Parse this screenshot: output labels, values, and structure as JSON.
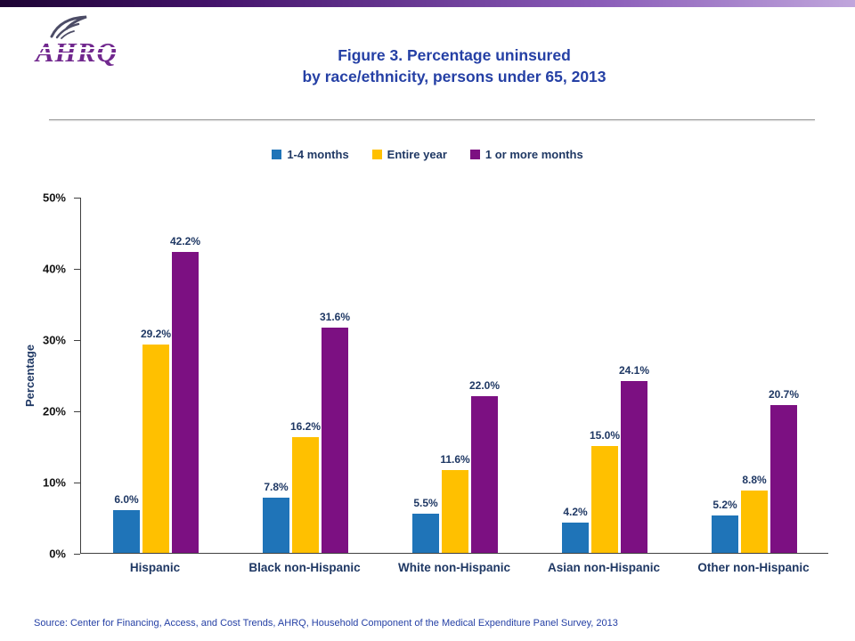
{
  "header": {
    "logo_text": "AHRQ",
    "title_line1": "Figure 3. Percentage uninsured",
    "title_line2": "by race/ethnicity, persons under 65, 2013"
  },
  "chart_data": {
    "type": "bar",
    "title": "Figure 3. Percentage uninsured by race/ethnicity, persons under 65, 2013",
    "categories": [
      "Hispanic",
      "Black non-Hispanic",
      "White non-Hispanic",
      "Asian non-Hispanic",
      "Other non-Hispanic"
    ],
    "series": [
      {
        "name": "1-4 months",
        "color": "#1f74b8",
        "values": [
          6.0,
          7.8,
          5.5,
          4.2,
          5.2
        ],
        "labels": [
          "6.0%",
          "7.8%",
          "5.5%",
          "4.2%",
          "5.2%"
        ]
      },
      {
        "name": "Entire year",
        "color": "#ffc000",
        "values": [
          29.2,
          16.2,
          11.6,
          15.0,
          8.8
        ],
        "labels": [
          "29.2%",
          "16.2%",
          "11.6%",
          "15.0%",
          "8.8%"
        ]
      },
      {
        "name": "1 or more months",
        "color": "#7c1082",
        "values": [
          42.2,
          31.6,
          22.0,
          24.1,
          20.7
        ],
        "labels": [
          "42.2%",
          "31.6%",
          "22.0%",
          "24.1%",
          "20.7%"
        ]
      }
    ],
    "xlabel": "",
    "ylabel": "Percentage",
    "ylim": [
      0,
      50
    ],
    "yticks": [
      "0%",
      "10%",
      "20%",
      "30%",
      "40%",
      "50%"
    ],
    "grid": false,
    "legend_position": "top"
  },
  "footer": {
    "source": "Source: Center for Financing, Access, and Cost Trends, AHRQ, Household Component of the Medical Expenditure Panel Survey,  2013"
  }
}
